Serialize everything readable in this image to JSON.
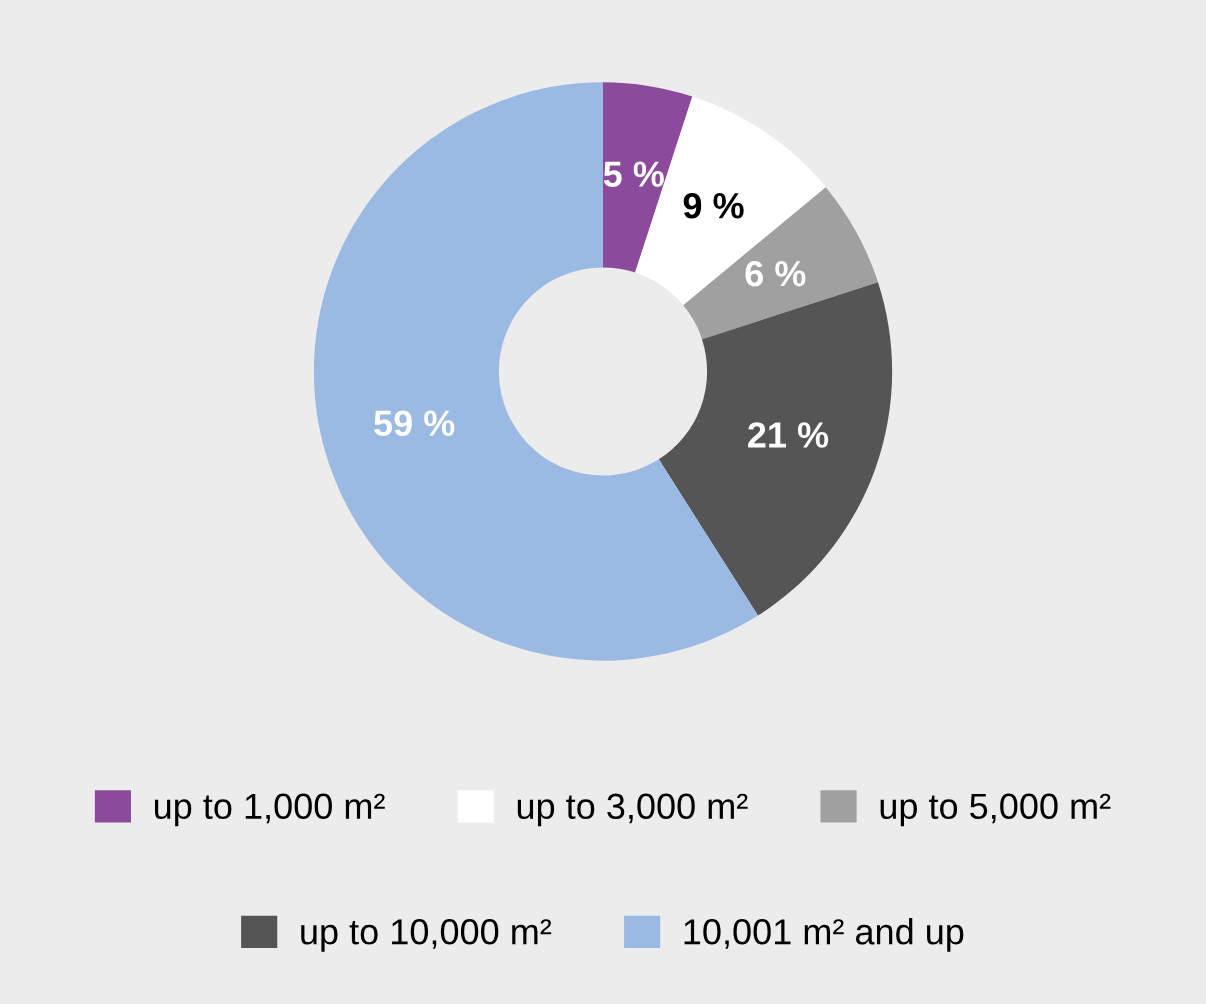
{
  "chart_data": {
    "type": "donut",
    "categories": [
      "up to 1,000 m²",
      "up to 3,000 m²",
      "up to 5,000 m²",
      "up to 10,000 m²",
      "10,001 m² and up"
    ],
    "values": [
      5,
      9,
      6,
      21,
      59
    ],
    "value_labels": [
      "5 %",
      "9 %",
      "6 %",
      "21 %",
      "59 %"
    ],
    "colors": [
      "#8b4a9c",
      "#ffffff",
      "#a0a0a0",
      "#555555",
      "#9bbae3"
    ],
    "legend": "bottom"
  }
}
